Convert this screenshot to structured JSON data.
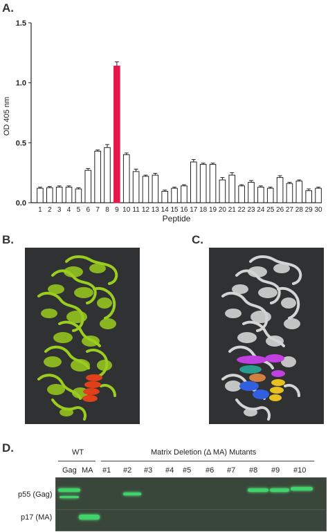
{
  "panels": {
    "a": "A.",
    "b": "B.",
    "c": "C.",
    "d": "D."
  },
  "chart_data": {
    "type": "bar",
    "title": "",
    "xlabel": "Peptide",
    "ylabel": "OD 405 nm",
    "ylim": [
      0,
      1.5
    ],
    "yticks": [
      "0.0",
      "0.5",
      "1.0",
      "1.5"
    ],
    "categories": [
      "1",
      "2",
      "3",
      "4",
      "5",
      "6",
      "7",
      "8",
      "9",
      "10",
      "11",
      "12",
      "13",
      "14",
      "15",
      "16",
      "17",
      "18",
      "19",
      "20",
      "21",
      "22",
      "23",
      "24",
      "25",
      "26",
      "27",
      "28",
      "29",
      "30"
    ],
    "values": [
      0.12,
      0.125,
      0.13,
      0.13,
      0.115,
      0.27,
      0.43,
      0.46,
      1.14,
      0.4,
      0.26,
      0.22,
      0.23,
      0.095,
      0.12,
      0.14,
      0.34,
      0.32,
      0.32,
      0.19,
      0.23,
      0.14,
      0.17,
      0.13,
      0.12,
      0.21,
      0.16,
      0.18,
      0.1,
      0.12
    ],
    "errors": [
      0.01,
      0.01,
      0.01,
      0.01,
      0.01,
      0.015,
      0.01,
      0.025,
      0.035,
      0.015,
      0.02,
      0.01,
      0.015,
      0.01,
      0.01,
      0.01,
      0.02,
      0.01,
      0.01,
      0.02,
      0.02,
      0.01,
      0.015,
      0.01,
      0.01,
      0.015,
      0.01,
      0.01,
      0.015,
      0.01
    ],
    "highlight_index": 8,
    "bar_color": "#ffffff",
    "highlight_color": "#e8174a",
    "grid": false
  },
  "blot": {
    "wt_label": "WT",
    "mutants_label": "Matrix Deletion (Δ MA) Mutants",
    "lanes": [
      "Gag",
      "MA",
      "#1",
      "#2",
      "#3",
      "#4",
      "#5",
      "#6",
      "#7",
      "#8",
      "#9",
      "#10"
    ],
    "rows": [
      "p55 (Gag)",
      "p17 (MA)"
    ],
    "band_color": "#3fd46a"
  },
  "structure_colors": {
    "b_main": "#9acd1e",
    "b_highlight": "#e0401a",
    "c_main": "#d4d4d4",
    "c_highlights": [
      "#c040e0",
      "#2a9d8f",
      "#3060e0",
      "#d08040",
      "#e8c020"
    ]
  }
}
